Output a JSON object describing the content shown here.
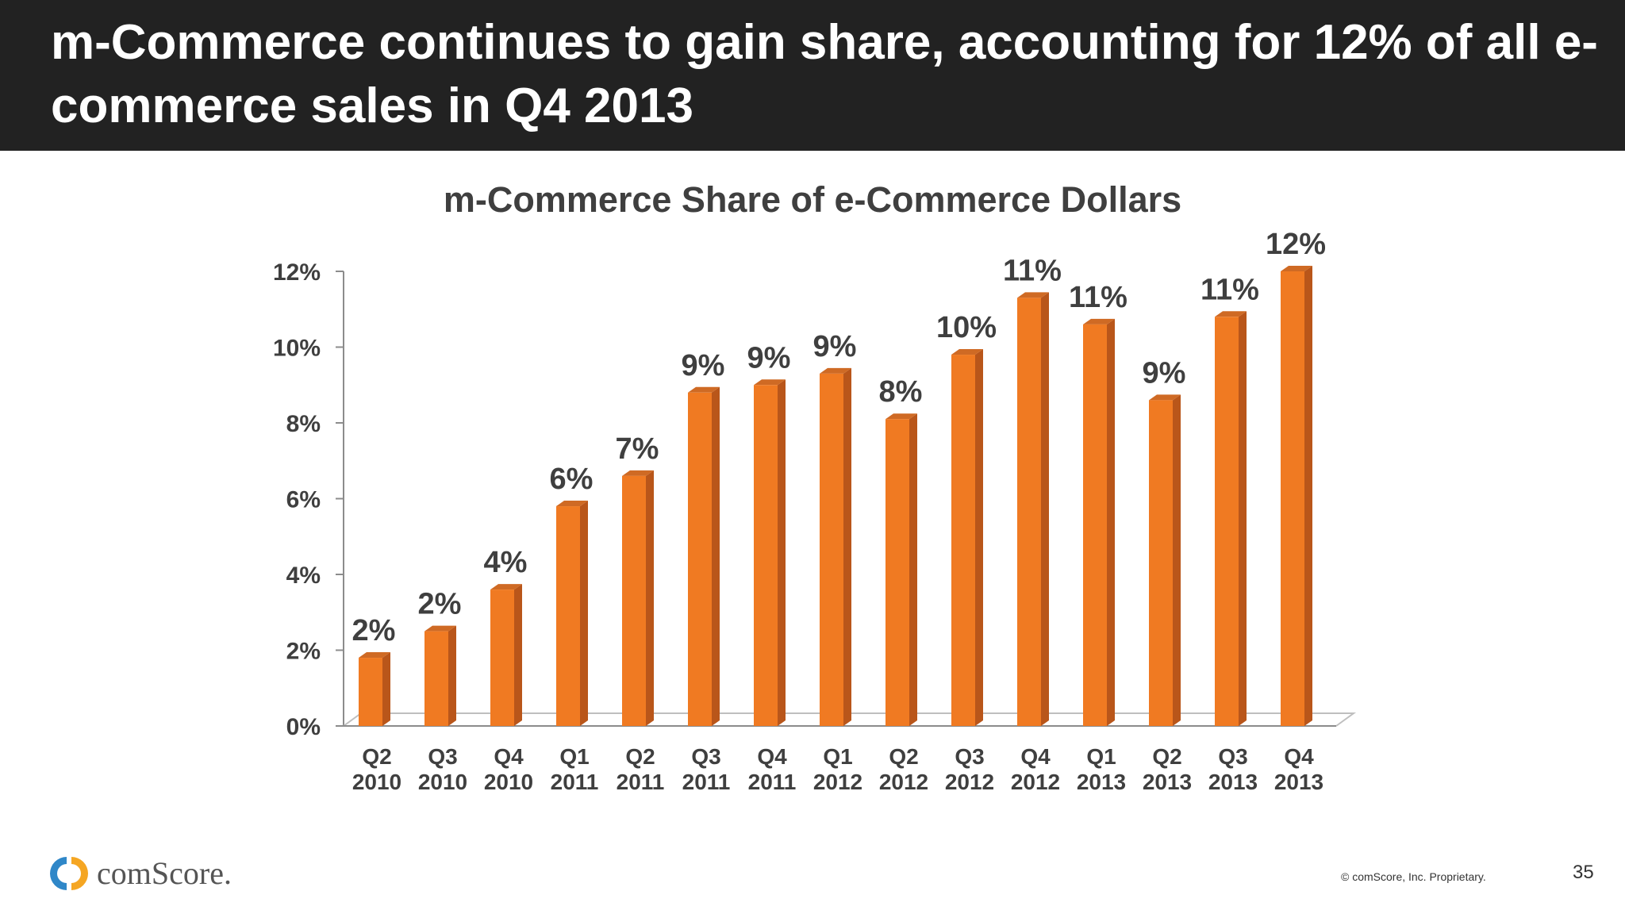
{
  "slide": {
    "headline": "m-Commerce continues to gain share, accounting for 12% of all e-commerce sales in Q4 2013",
    "logo_text": "comScore.",
    "footnote": "© comScore, Inc. Proprietary.",
    "page_number": "35"
  },
  "colors": {
    "bar_front": "#f07a22",
    "bar_side": "#b9561a",
    "bar_top": "#cf6a24",
    "header_bg": "#222222"
  },
  "chart_data": {
    "type": "bar",
    "title": "m-Commerce Share of e-Commerce Dollars",
    "xlabel": "",
    "ylabel": "",
    "ylim": [
      0,
      12
    ],
    "yticks": [
      "0%",
      "2%",
      "4%",
      "6%",
      "8%",
      "10%",
      "12%"
    ],
    "categories": [
      [
        "Q2",
        "2010"
      ],
      [
        "Q3",
        "2010"
      ],
      [
        "Q4",
        "2010"
      ],
      [
        "Q1",
        "2011"
      ],
      [
        "Q2",
        "2011"
      ],
      [
        "Q3",
        "2011"
      ],
      [
        "Q4",
        "2011"
      ],
      [
        "Q1",
        "2012"
      ],
      [
        "Q2",
        "2012"
      ],
      [
        "Q3",
        "2012"
      ],
      [
        "Q4",
        "2012"
      ],
      [
        "Q1",
        "2013"
      ],
      [
        "Q2",
        "2013"
      ],
      [
        "Q3",
        "2013"
      ],
      [
        "Q4",
        "2013"
      ]
    ],
    "values": [
      1.8,
      2.5,
      3.6,
      5.8,
      6.6,
      8.8,
      9.0,
      9.3,
      8.1,
      9.8,
      11.3,
      10.6,
      8.6,
      10.8,
      12.0
    ],
    "data_labels": [
      "2%",
      "2%",
      "4%",
      "6%",
      "7%",
      "9%",
      "9%",
      "9%",
      "8%",
      "10%",
      "11%",
      "11%",
      "9%",
      "11%",
      "12%"
    ],
    "grid": false,
    "legend": "none"
  }
}
